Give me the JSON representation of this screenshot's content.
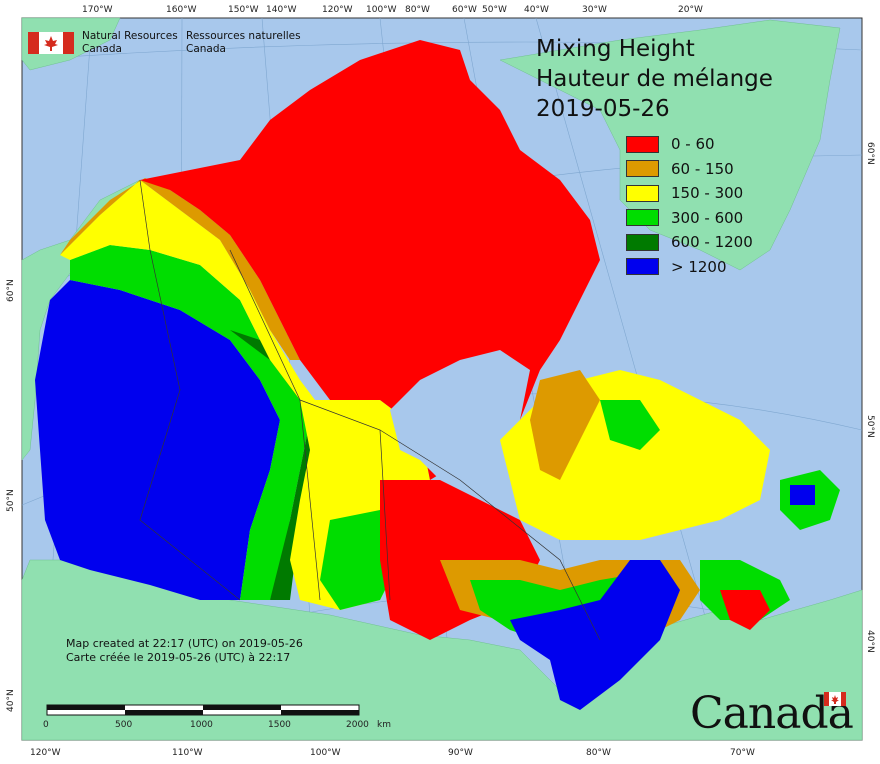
{
  "header": {
    "agency_en": "Natural Resources",
    "agency_en2": "Canada",
    "agency_fr": "Ressources naturelles",
    "agency_fr2": "Canada"
  },
  "title": {
    "line1": "Mixing Height",
    "line2": "Hauteur de mélange",
    "date": "2019-05-26"
  },
  "legend": [
    {
      "label": "0 - 60",
      "color": "#ff0000"
    },
    {
      "label": "60 - 150",
      "color": "#dd9a00"
    },
    {
      "label": "150 - 300",
      "color": "#ffff00"
    },
    {
      "label": "300 - 600",
      "color": "#00dd00"
    },
    {
      "label": "600 - 1200",
      "color": "#007a00"
    },
    {
      "label": "> 1200",
      "color": "#0000ee"
    }
  ],
  "top_ticks": [
    "170°W",
    "160°W",
    "150°W",
    "140°W",
    "120°W",
    "100°W",
    "80°W",
    "60°W",
    "50°W",
    "40°W",
    "30°W",
    "20°W"
  ],
  "bottom_ticks": [
    "120°W",
    "110°W",
    "100°W",
    "90°W",
    "80°W",
    "70°W"
  ],
  "left_ticks": [
    "60°N",
    "50°N",
    "40°N"
  ],
  "right_ticks": [
    "60°N",
    "50°N",
    "40°N"
  ],
  "scale": {
    "labels": [
      "0",
      "500",
      "1000",
      "1500",
      "2000"
    ],
    "unit": "km"
  },
  "footer": {
    "created_en": "Map created at 22:17 (UTC) on 2019-05-26",
    "created_fr": "Carte créée le 2019-05-26 (UTC) à 22:17"
  },
  "wordmark": "Canada",
  "colors": {
    "ocean": "#a8c8ec",
    "land_other": "#90e0b0"
  }
}
